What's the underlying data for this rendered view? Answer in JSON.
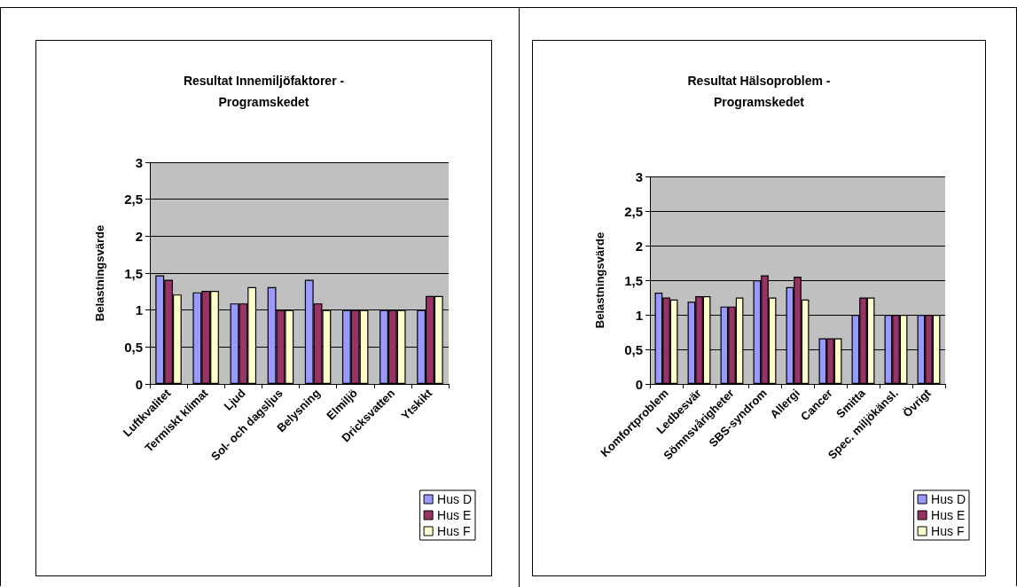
{
  "chart_data": [
    {
      "type": "bar",
      "title": "Resultat Innemiljöfaktorer -\nProgramskedet",
      "ylabel": "Belastningsvärde",
      "categories": [
        "Luftkvalitet",
        "Termiskt klimat",
        "Ljud",
        "Sol- och dagsljus",
        "Belysning",
        "Elmiljö",
        "Dricksvatten",
        "Ytskikt"
      ],
      "series": [
        {
          "name": "Hus D",
          "color": "#9999ff",
          "values": [
            1.47,
            1.24,
            1.09,
            1.31,
            1.41,
            1,
            1,
            1
          ]
        },
        {
          "name": "Hus E",
          "color": "#993366",
          "values": [
            1.41,
            1.26,
            1.09,
            1,
            1.09,
            1,
            1,
            1.19
          ]
        },
        {
          "name": "Hus F",
          "color": "#ffffcc",
          "values": [
            1.21,
            1.26,
            1.31,
            1,
            1,
            1,
            1,
            1.19
          ]
        }
      ],
      "ylim": [
        0,
        3
      ],
      "yticks": [
        0,
        {
          "value": 0.5,
          "label": "0,5"
        },
        1,
        {
          "value": 1.5,
          "label": "1,5"
        },
        2,
        {
          "value": 2.5,
          "label": "2,5"
        },
        3
      ],
      "grid": "y",
      "legend": "bottom right"
    },
    {
      "type": "bar",
      "title": "Resultat Hälsoproblem -\nProgramskedet",
      "ylabel": "Belastningsvärde",
      "categories": [
        "Komfortproblem",
        "Ledbesvär",
        "Sömnsvårigheter",
        "SBS-syndrom",
        "Allergi",
        "Cancer",
        "Smitta",
        "Spec. miljökänsl.",
        "Övrigt"
      ],
      "series": [
        {
          "name": "Hus D",
          "color": "#9999ff",
          "values": [
            1.32,
            1.19,
            1.12,
            1.5,
            1.4,
            0.66,
            1,
            1,
            1
          ]
        },
        {
          "name": "Hus E",
          "color": "#993366",
          "values": [
            1.25,
            1.27,
            1.12,
            1.57,
            1.55,
            0.66,
            1.25,
            1,
            1
          ]
        },
        {
          "name": "Hus F",
          "color": "#ffffcc",
          "values": [
            1.22,
            1.27,
            1.25,
            1.25,
            1.22,
            0.66,
            1.25,
            1,
            1
          ]
        }
      ],
      "ylim": [
        0,
        3
      ],
      "yticks": [
        0,
        {
          "value": 0.5,
          "label": "0,5"
        },
        1,
        {
          "value": 1.5,
          "label": "1,5"
        },
        2,
        {
          "value": 2.5,
          "label": "2,5"
        },
        3
      ],
      "grid": "y",
      "legend": "bottom right"
    }
  ]
}
